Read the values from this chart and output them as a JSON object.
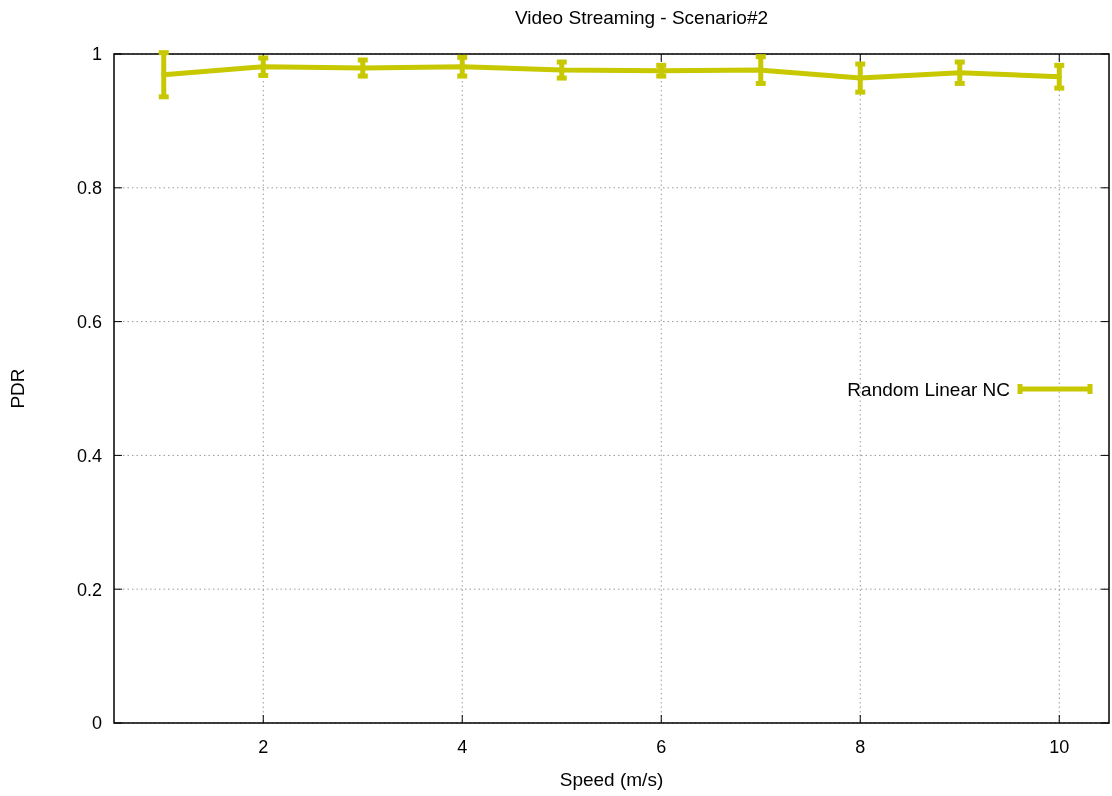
{
  "chart_data": {
    "type": "line",
    "title": "Video Streaming - Scenario#2",
    "xlabel": "Speed (m/s)",
    "ylabel": "PDR",
    "x": [
      1,
      2,
      3,
      4,
      5,
      6,
      7,
      8,
      9,
      10
    ],
    "series": [
      {
        "name": "Random Linear NC",
        "color": "#c8c800",
        "values": [
          0.969,
          0.981,
          0.979,
          0.981,
          0.976,
          0.975,
          0.976,
          0.964,
          0.972,
          0.966
        ],
        "errors": [
          0.033,
          0.013,
          0.012,
          0.014,
          0.012,
          0.008,
          0.02,
          0.021,
          0.016,
          0.017
        ]
      }
    ],
    "xlim": [
      0.5,
      10.5
    ],
    "ylim": [
      0,
      1
    ],
    "xticks": [
      2,
      4,
      6,
      8,
      10
    ],
    "yticks": [
      0,
      0.2,
      0.4,
      0.6,
      0.8,
      1
    ],
    "grid": true,
    "legend": "right",
    "line_style": "solid"
  }
}
